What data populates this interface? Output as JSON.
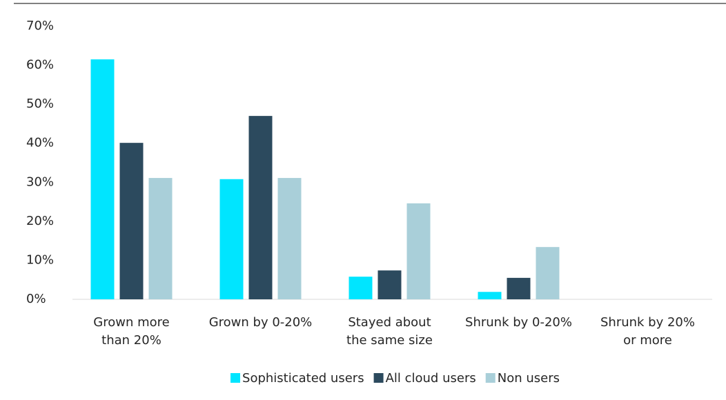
{
  "chart_data": {
    "type": "bar",
    "categories": [
      "Grown more\nthan 20%",
      "Grown by 0-20%",
      "Stayed about\nthe same size",
      "Shrunk by 0-20%",
      "Shrunk by 20%\nor more"
    ],
    "series": [
      {
        "name": "Sophisticated users",
        "color": "#00e5ff",
        "values": [
          61.5,
          30.8,
          5.8,
          1.9,
          0
        ]
      },
      {
        "name": "All cloud users",
        "color": "#2c4a5e",
        "values": [
          40.1,
          47.0,
          7.4,
          5.5,
          0
        ]
      },
      {
        "name": "Non users",
        "color": "#a9cfd9",
        "values": [
          31.1,
          31.1,
          24.6,
          13.4,
          0
        ]
      }
    ],
    "ylim": [
      0,
      70
    ],
    "yticks": [
      {
        "value": 0,
        "label": "0%"
      },
      {
        "value": 10,
        "label": "10%"
      },
      {
        "value": 20,
        "label": "20%"
      },
      {
        "value": 30,
        "label": "30%"
      },
      {
        "value": 40,
        "label": "40%"
      },
      {
        "value": 50,
        "label": "50%"
      },
      {
        "value": 60,
        "label": "60%"
      },
      {
        "value": 70,
        "label": "70%"
      }
    ],
    "grid": false,
    "legend": "bottom"
  }
}
